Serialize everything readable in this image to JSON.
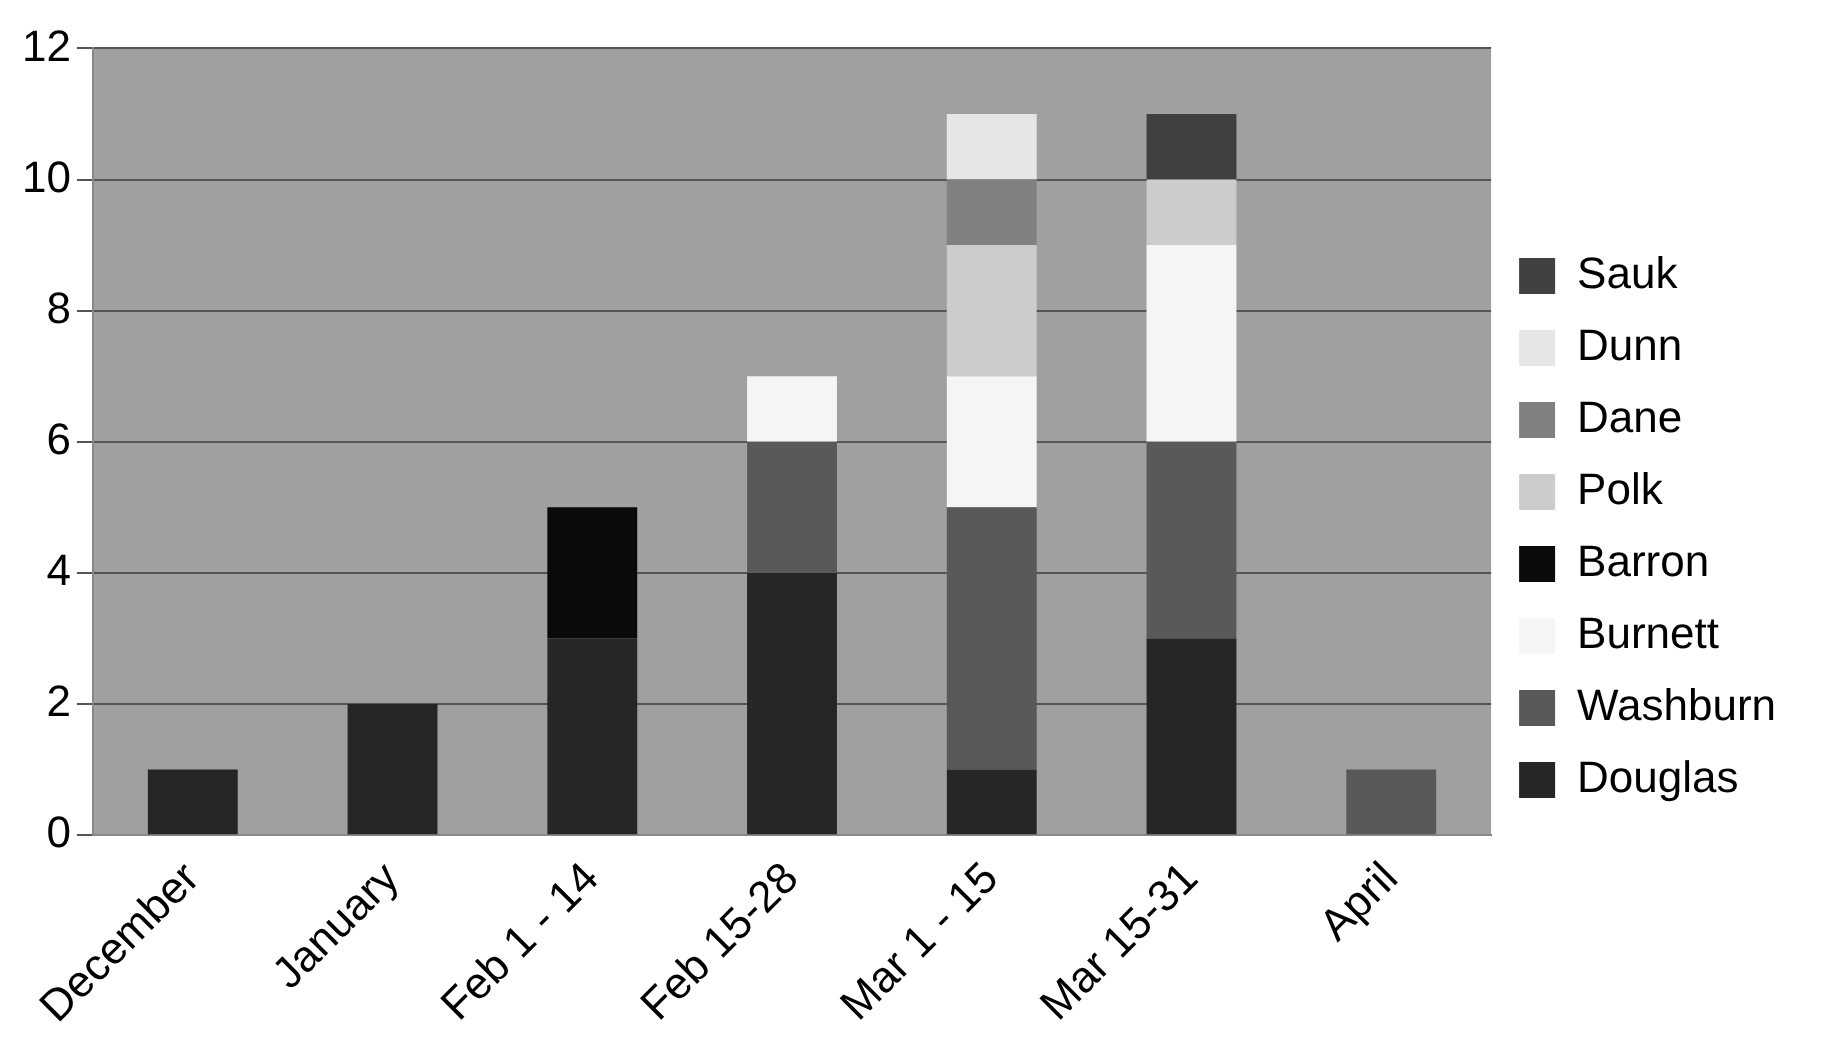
{
  "chart_data": {
    "type": "bar",
    "stacked": true,
    "categories": [
      "December",
      "January",
      "Feb 1 - 14",
      "Feb 15-28",
      "Mar 1 - 15",
      "Mar 15-31",
      "April"
    ],
    "series": [
      {
        "name": "Douglas",
        "color": "#262626",
        "values": [
          1,
          2,
          3,
          4,
          1,
          3,
          0
        ]
      },
      {
        "name": "Washburn",
        "color": "#595959",
        "values": [
          0,
          0,
          0,
          2,
          4,
          3,
          1
        ]
      },
      {
        "name": "Burnett",
        "color": "#f5f5f5",
        "values": [
          0,
          0,
          0,
          1,
          2,
          3,
          0
        ]
      },
      {
        "name": "Barron",
        "color": "#0a0a0a",
        "values": [
          0,
          0,
          2,
          0,
          0,
          0,
          0
        ]
      },
      {
        "name": "Polk",
        "color": "#cccccc",
        "values": [
          0,
          0,
          0,
          0,
          2,
          1,
          0
        ]
      },
      {
        "name": "Dane",
        "color": "#808080",
        "values": [
          0,
          0,
          0,
          0,
          1,
          0,
          0
        ]
      },
      {
        "name": "Dunn",
        "color": "#e6e6e6",
        "values": [
          0,
          0,
          0,
          0,
          1,
          0,
          0
        ]
      },
      {
        "name": "Sauk",
        "color": "#404040",
        "values": [
          0,
          0,
          0,
          0,
          0,
          1,
          0
        ]
      }
    ],
    "ylim": [
      0,
      12
    ],
    "yticks": [
      0,
      2,
      4,
      6,
      8,
      10,
      12
    ],
    "grid": "y",
    "legend": "right"
  }
}
